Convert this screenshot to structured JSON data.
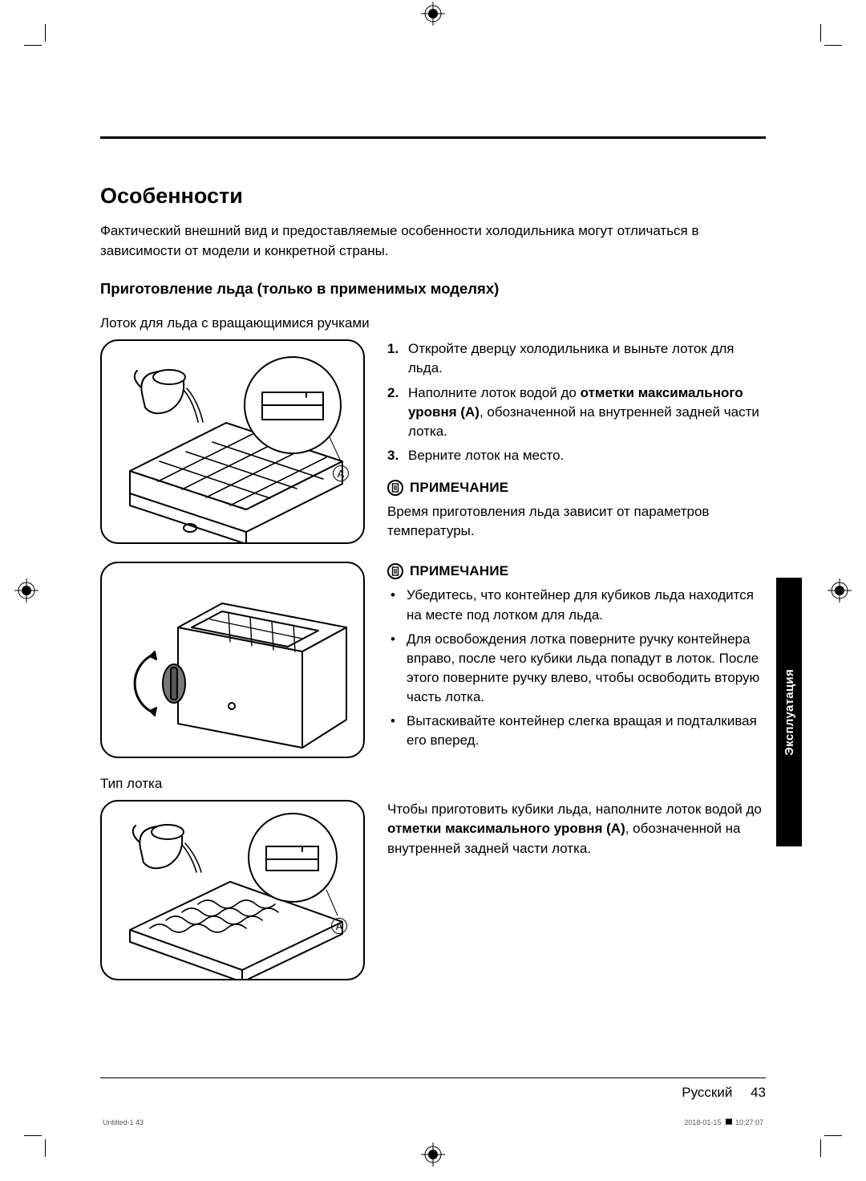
{
  "heading": "Особенности",
  "intro": "Фактический внешний вид и предоставляемые особенности холодильника могут отличаться в зависимости от модели и конкретной страны.",
  "subheading": "Приготовление льда (только в применимых моделях)",
  "tray_caption": "Лоток для льда с вращающимися ручками",
  "marker_A": "A",
  "steps": {
    "s1_num": "1.",
    "s1": "Откройте дверцу холодильника и выньте лоток для льда.",
    "s2_num": "2.",
    "s2_a": "Наполните лоток водой до ",
    "s2_b": "отметки максимального уровня (A)",
    "s2_c": ", обозначенной на внутренней задней части лотка.",
    "s3_num": "3.",
    "s3": "Верните лоток на место."
  },
  "note_label": "ПРИМЕЧАНИЕ",
  "note1_text": "Время приготовления льда зависит от параметров температуры.",
  "note2_items": {
    "a": "Убедитесь, что контейнер для кубиков льда находится на месте под лотком для льда.",
    "b": "Для освобождения лотка поверните ручку контейнера вправо, после чего кубики льда попадут в лоток. После этого поверните ручку влево, чтобы освободить вторую часть лотка.",
    "c": "Вытаскивайте контейнер слегка вращая и подталкивая его вперед."
  },
  "tray_type_caption": "Тип лотка",
  "para3_a": "Чтобы приготовить кубики льда, наполните лоток водой до ",
  "para3_b": "отметки максимального уровня (A)",
  "para3_c": ", обозначенной на внутренней задней части лотка.",
  "sidetab": "Эксплуатация",
  "footer_lang": "Русский",
  "footer_page": "43",
  "job_left": "Untitled-1   43",
  "job_right_date": "2018-01-15",
  "job_right_time": "10:27:07",
  "colors": {
    "ink": "#000000",
    "paper": "#ffffff",
    "jobtext": "#555555"
  }
}
